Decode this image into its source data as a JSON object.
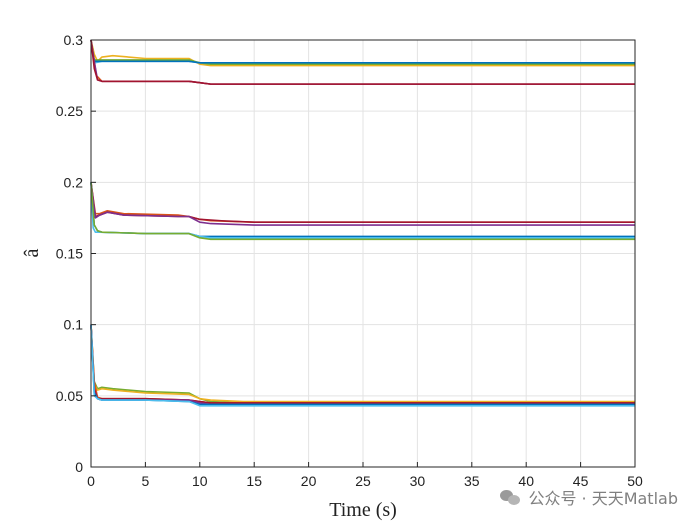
{
  "chart_data": {
    "type": "line",
    "xlabel": "Time (s)",
    "ylabel": "â",
    "xlim": [
      0,
      50
    ],
    "ylim": [
      0,
      0.3
    ],
    "xticks": [
      "0",
      "5",
      "10",
      "15",
      "20",
      "25",
      "30",
      "35",
      "40",
      "45",
      "50"
    ],
    "yticks": [
      "0",
      "0.05",
      "0.1",
      "0.15",
      "0.2",
      "0.25",
      "0.3"
    ],
    "grid": true,
    "series": [
      {
        "color": "#EDB120",
        "x": [
          0,
          0.3,
          0.6,
          1,
          2,
          5,
          9,
          9.5,
          10,
          11,
          50
        ],
        "y": [
          0.3,
          0.29,
          0.285,
          0.288,
          0.289,
          0.287,
          0.287,
          0.285,
          0.283,
          0.282,
          0.282
        ]
      },
      {
        "color": "#4DBEEE",
        "x": [
          0,
          0.2,
          0.4,
          1,
          5,
          9,
          10,
          11,
          50
        ],
        "y": [
          0.3,
          0.288,
          0.284,
          0.285,
          0.285,
          0.285,
          0.284,
          0.283,
          0.283
        ]
      },
      {
        "color": "#77AC30",
        "x": [
          0,
          0.3,
          1,
          5,
          9,
          10,
          11,
          50
        ],
        "y": [
          0.3,
          0.286,
          0.286,
          0.286,
          0.286,
          0.284,
          0.283,
          0.283
        ]
      },
      {
        "color": "#0072BD",
        "x": [
          0,
          0.3,
          1,
          5,
          9,
          10,
          11,
          50
        ],
        "y": [
          0.3,
          0.285,
          0.285,
          0.285,
          0.285,
          0.284,
          0.284,
          0.284
        ]
      },
      {
        "color": "#D95319",
        "x": [
          0,
          0.2,
          0.5,
          1,
          2,
          5,
          9,
          10,
          11,
          50
        ],
        "y": [
          0.3,
          0.29,
          0.275,
          0.271,
          0.271,
          0.271,
          0.271,
          0.27,
          0.269,
          0.269
        ]
      },
      {
        "color": "#7E2F8E",
        "x": [
          0,
          0.3,
          0.6,
          1,
          5,
          9,
          10,
          11,
          50
        ],
        "y": [
          0.3,
          0.285,
          0.272,
          0.271,
          0.271,
          0.271,
          0.27,
          0.269,
          0.269
        ]
      },
      {
        "color": "#A2142F",
        "x": [
          0,
          0.3,
          0.6,
          1,
          5,
          9,
          10,
          11,
          50
        ],
        "y": [
          0.3,
          0.28,
          0.272,
          0.271,
          0.271,
          0.271,
          0.27,
          0.269,
          0.269
        ]
      },
      {
        "color": "#D95319",
        "x": [
          0,
          0.4,
          0.8,
          1.5,
          3,
          8,
          9,
          10,
          11,
          15,
          50
        ],
        "y": [
          0.2,
          0.178,
          0.178,
          0.18,
          0.178,
          0.177,
          0.176,
          0.174,
          0.173,
          0.172,
          0.172
        ]
      },
      {
        "color": "#A2142F",
        "x": [
          0,
          0.4,
          0.8,
          1.5,
          3,
          8,
          9,
          10,
          12,
          15,
          50
        ],
        "y": [
          0.2,
          0.176,
          0.177,
          0.179,
          0.177,
          0.176,
          0.176,
          0.174,
          0.173,
          0.172,
          0.172
        ]
      },
      {
        "color": "#7E2F8E",
        "x": [
          0,
          0.4,
          0.8,
          1.5,
          3,
          8,
          9,
          10,
          11,
          15,
          50
        ],
        "y": [
          0.2,
          0.175,
          0.177,
          0.179,
          0.177,
          0.176,
          0.176,
          0.172,
          0.171,
          0.17,
          0.17
        ]
      },
      {
        "color": "#0072BD",
        "x": [
          0,
          0.3,
          0.6,
          1,
          5,
          9,
          10,
          11,
          50
        ],
        "y": [
          0.2,
          0.17,
          0.166,
          0.165,
          0.164,
          0.164,
          0.162,
          0.162,
          0.162
        ]
      },
      {
        "color": "#4DBEEE",
        "x": [
          0,
          0.2,
          0.4,
          0.8,
          5,
          9,
          10,
          11,
          50
        ],
        "y": [
          0.2,
          0.168,
          0.165,
          0.165,
          0.164,
          0.164,
          0.162,
          0.161,
          0.161
        ]
      },
      {
        "color": "#77AC30",
        "x": [
          0,
          0.3,
          0.6,
          1,
          5,
          9,
          10,
          11,
          50
        ],
        "y": [
          0.2,
          0.17,
          0.166,
          0.165,
          0.164,
          0.164,
          0.161,
          0.16,
          0.16
        ]
      },
      {
        "color": "#77AC30",
        "x": [
          0,
          0.3,
          0.6,
          1,
          2,
          5,
          9,
          10,
          11,
          14,
          50
        ],
        "y": [
          0.1,
          0.06,
          0.055,
          0.056,
          0.055,
          0.053,
          0.052,
          0.048,
          0.046,
          0.045,
          0.045
        ]
      },
      {
        "color": "#EDB120",
        "x": [
          0,
          0.3,
          0.6,
          1,
          2,
          5,
          9,
          10,
          11,
          14,
          50
        ],
        "y": [
          0.1,
          0.058,
          0.054,
          0.055,
          0.054,
          0.052,
          0.051,
          0.048,
          0.047,
          0.046,
          0.046
        ]
      },
      {
        "color": "#D95319",
        "x": [
          0,
          0.3,
          0.6,
          1,
          5,
          9,
          10,
          11,
          14,
          50
        ],
        "y": [
          0.1,
          0.06,
          0.049,
          0.048,
          0.048,
          0.047,
          0.046,
          0.045,
          0.045,
          0.045
        ]
      },
      {
        "color": "#A2142F",
        "x": [
          0,
          0.3,
          0.6,
          1,
          5,
          9,
          10,
          11,
          14,
          50
        ],
        "y": [
          0.1,
          0.055,
          0.048,
          0.048,
          0.048,
          0.047,
          0.046,
          0.045,
          0.045,
          0.045
        ]
      },
      {
        "color": "#7E2F8E",
        "x": [
          0,
          0.3,
          0.6,
          1,
          5,
          9,
          10,
          11,
          50
        ],
        "y": [
          0.1,
          0.053,
          0.048,
          0.047,
          0.047,
          0.047,
          0.045,
          0.044,
          0.044
        ]
      },
      {
        "color": "#0072BD",
        "x": [
          0,
          0.3,
          0.6,
          1,
          5,
          9,
          10,
          11,
          50
        ],
        "y": [
          0.1,
          0.052,
          0.048,
          0.047,
          0.047,
          0.046,
          0.044,
          0.044,
          0.044
        ]
      },
      {
        "color": "#4DBEEE",
        "x": [
          0,
          0.3,
          0.6,
          1,
          5,
          9,
          10,
          11,
          50
        ],
        "y": [
          0.1,
          0.05,
          0.048,
          0.047,
          0.047,
          0.046,
          0.043,
          0.043,
          0.043
        ]
      }
    ]
  },
  "watermark": {
    "text": "公众号 · 天天Matlab",
    "icon": "wechat-icon"
  }
}
